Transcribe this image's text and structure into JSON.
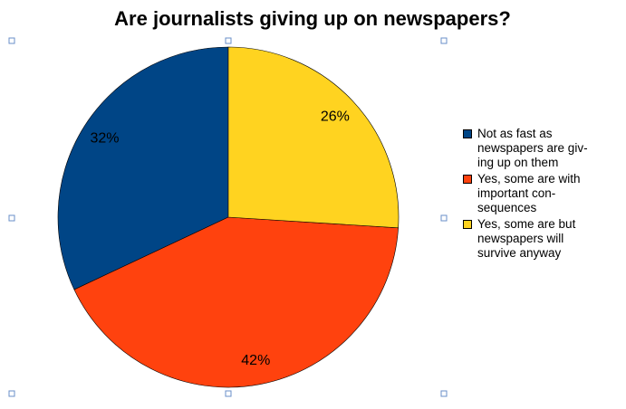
{
  "chart_data": {
    "type": "pie",
    "title": "Are journalists giving up on newspapers?",
    "categories": [
      "Not as fast as\nnewspapers are giv-\ning up on them",
      "Yes, some are with\nimportant con-\nsequences",
      "Yes, some are but\nnewspapers will\nsurvive anyway"
    ],
    "values": [
      32,
      42,
      26
    ],
    "value_labels": [
      "32%",
      "42%",
      "26%"
    ],
    "colors": [
      "#004586",
      "#ff420e",
      "#ffd320"
    ]
  }
}
